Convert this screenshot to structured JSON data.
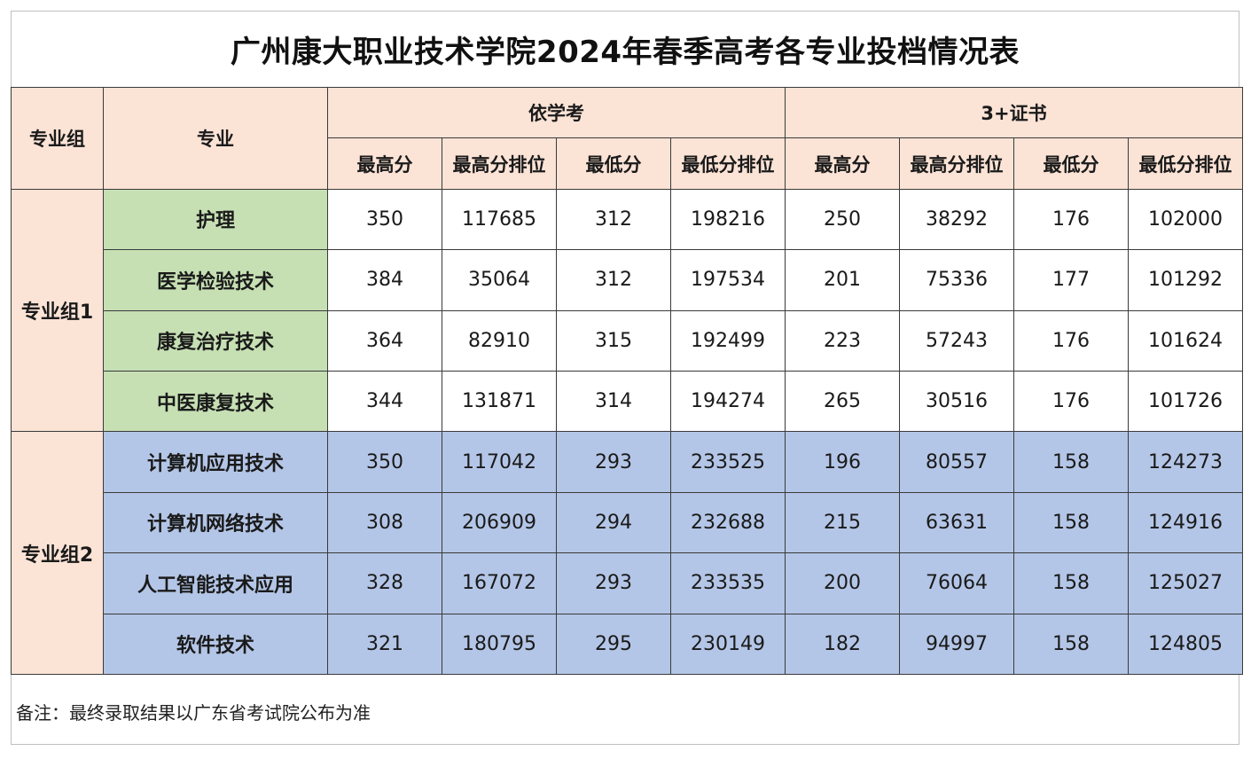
{
  "title": "广州康大职业技术学院2024年春季高考各专业投档情况表",
  "header": {
    "col_group": "专业组",
    "col_major": "专业",
    "section_a": "依学考",
    "section_b": "3+证书",
    "sub": [
      "最高分",
      "最高分排位",
      "最低分",
      "最低分排位",
      "最高分",
      "最高分排位",
      "最低分",
      "最低分排位"
    ]
  },
  "groups": [
    {
      "name": "专业组1",
      "rows": [
        {
          "major": "护理",
          "values": [
            "350",
            "117685",
            "312",
            "198216",
            "250",
            "38292",
            "176",
            "102000"
          ]
        },
        {
          "major": "医学检验技术",
          "values": [
            "384",
            "35064",
            "312",
            "197534",
            "201",
            "75336",
            "177",
            "101292"
          ]
        },
        {
          "major": "康复治疗技术",
          "values": [
            "364",
            "82910",
            "315",
            "192499",
            "223",
            "57243",
            "176",
            "101624"
          ]
        },
        {
          "major": "中医康复技术",
          "values": [
            "344",
            "131871",
            "314",
            "194274",
            "265",
            "30516",
            "176",
            "101726"
          ]
        }
      ]
    },
    {
      "name": "专业组2",
      "rows": [
        {
          "major": "计算机应用技术",
          "values": [
            "350",
            "117042",
            "293",
            "233525",
            "196",
            "80557",
            "158",
            "124273"
          ]
        },
        {
          "major": "计算机网络技术",
          "values": [
            "308",
            "206909",
            "294",
            "232688",
            "215",
            "63631",
            "158",
            "124916"
          ]
        },
        {
          "major": "人工智能技术应用",
          "values": [
            "328",
            "167072",
            "293",
            "233535",
            "200",
            "76064",
            "158",
            "125027"
          ]
        },
        {
          "major": "软件技术",
          "values": [
            "321",
            "180795",
            "295",
            "230149",
            "182",
            "94997",
            "158",
            "124805"
          ]
        }
      ]
    }
  ],
  "note": "备注：最终录取结果以广东省考试院公布为准"
}
